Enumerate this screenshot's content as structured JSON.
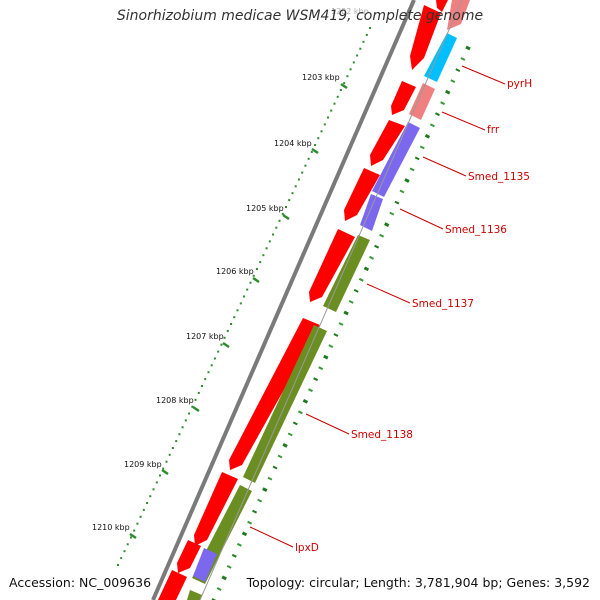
{
  "title": "Sinorhizobium medicae WSM419, complete genome",
  "accession": "Accession: NC_009636",
  "summary": "Topology: circular; Length: 3,781,904 bp; Genes: 3,592",
  "colors": {
    "backbone": "#7a7a7a",
    "forward_cds": "#ff0000",
    "reverse_cds": "#6b8e23",
    "gc_skew_blue": "#00bfff",
    "gc_skew_pink": "#f08080",
    "gc_skew_purple": "#7b68ee",
    "tick": "#2e8b2e",
    "label": "#cc0000"
  },
  "ticks": [
    {
      "kbp": 1202,
      "label": "1202 kbp"
    },
    {
      "kbp": 1203,
      "label": "1203 kbp"
    },
    {
      "kbp": 1204,
      "label": "1204 kbp"
    },
    {
      "kbp": 1205,
      "label": "1205 kbp"
    },
    {
      "kbp": 1206,
      "label": "1206 kbp"
    },
    {
      "kbp": 1207,
      "label": "1207 kbp"
    },
    {
      "kbp": 1208,
      "label": "1208 kbp"
    },
    {
      "kbp": 1209,
      "label": "1209 kbp"
    },
    {
      "kbp": 1210,
      "label": "1210 kbp"
    }
  ],
  "genes": [
    {
      "name": "pyrH",
      "track": "reverse",
      "color": "gc_skew_blue"
    },
    {
      "name": "frr",
      "track": "reverse",
      "color": "gc_skew_pink"
    },
    {
      "name": "Smed_1135",
      "track": "reverse",
      "color": "gc_skew_purple"
    },
    {
      "name": "Smed_1136",
      "track": "reverse",
      "color": "gc_skew_purple"
    },
    {
      "name": "Smed_1137",
      "track": "reverse",
      "color": "reverse_cds"
    },
    {
      "name": "Smed_1138",
      "track": "reverse",
      "color": "reverse_cds"
    },
    {
      "name": "lpxD",
      "track": "reverse",
      "color": "reverse_cds"
    }
  ]
}
